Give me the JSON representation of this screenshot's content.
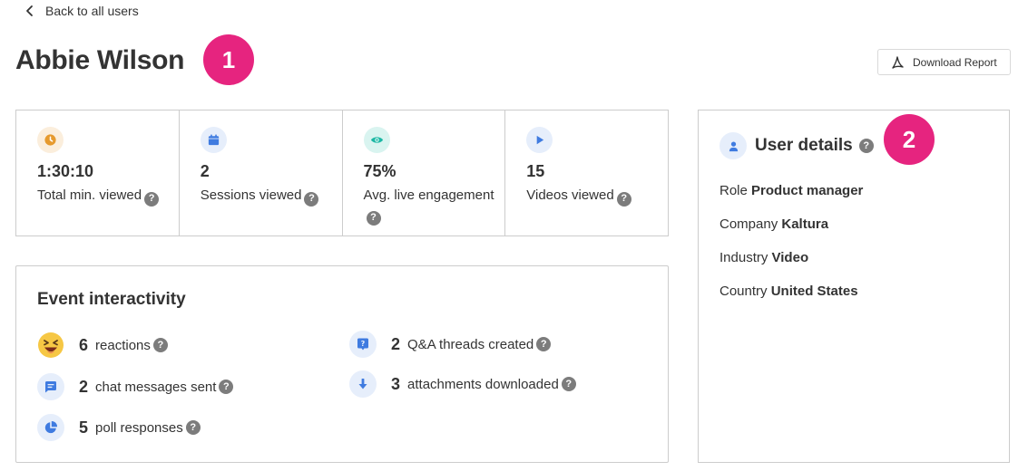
{
  "nav": {
    "back_label": "Back to all users"
  },
  "user": {
    "name": "Abbie Wilson"
  },
  "badges": {
    "first": "1",
    "second": "2"
  },
  "toolbar": {
    "download_label": "Download Report"
  },
  "stats": [
    {
      "value": "1:30:10",
      "label": "Total min. viewed",
      "icon": "clock-icon",
      "color": "#e69a2e"
    },
    {
      "value": "2",
      "label": "Sessions viewed",
      "icon": "calendar-icon",
      "color": "#3f7be0"
    },
    {
      "value": "75%",
      "label": "Avg. live engagement",
      "icon": "eye-icon",
      "color": "#1db8a5"
    },
    {
      "value": "15",
      "label": "Videos viewed",
      "icon": "play-icon",
      "color": "#3f7be0"
    }
  ],
  "interactivity": {
    "title": "Event interactivity",
    "items": [
      {
        "count": "6",
        "label": "reactions",
        "icon": "laughing-emoji-icon"
      },
      {
        "count": "2",
        "label": "chat messages sent",
        "icon": "chat-icon"
      },
      {
        "count": "5",
        "label": "poll responses",
        "icon": "pie-chart-icon"
      },
      {
        "count": "2",
        "label": "Q&A threads created",
        "icon": "question-bubble-icon"
      },
      {
        "count": "3",
        "label": "attachments downloaded",
        "icon": "download-arrow-icon"
      }
    ]
  },
  "details": {
    "title": "User details",
    "rows": [
      {
        "key": "Role",
        "value": "Product manager"
      },
      {
        "key": "Company",
        "value": "Kaltura"
      },
      {
        "key": "Industry",
        "value": "Video"
      },
      {
        "key": "Country",
        "value": "United States"
      }
    ]
  },
  "help_glyph": "?"
}
